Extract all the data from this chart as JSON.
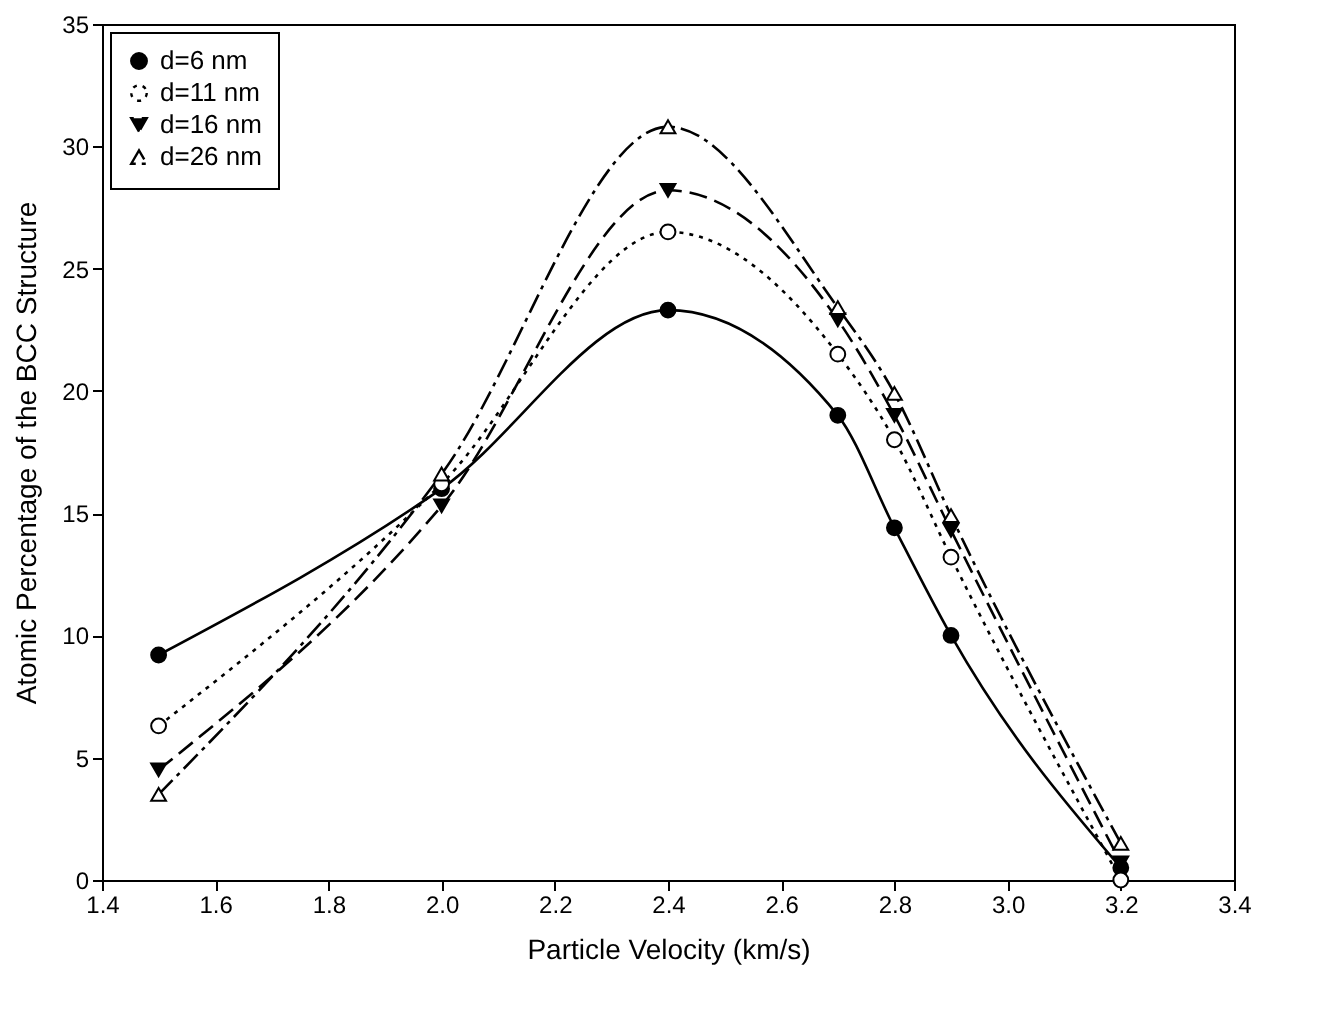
{
  "chart_data": {
    "type": "line",
    "xlabel": "Particle Velocity (km/s)",
    "ylabel": "Atomic Percentage of the BCC Structure",
    "x": [
      1.5,
      2.0,
      2.4,
      2.7,
      2.8,
      2.9,
      3.2
    ],
    "series": [
      {
        "name": "d=6 nm",
        "color": "#000000",
        "marker": "circle",
        "line_style": "solid",
        "values": [
          9.2,
          16.0,
          23.3,
          19.0,
          14.4,
          10.0,
          0.5
        ]
      },
      {
        "name": "d=11 nm",
        "color": "#000000",
        "marker": "circle-open",
        "line_style": "dotted",
        "values": [
          6.3,
          16.2,
          26.5,
          21.5,
          18.0,
          13.2,
          0
        ]
      },
      {
        "name": "d=16 nm",
        "color": "#000000",
        "marker": "triangle-down",
        "line_style": "dashed",
        "values": [
          4.5,
          15.3,
          28.2,
          22.9,
          19.0,
          14.3,
          0.7
        ]
      },
      {
        "name": "d=26 nm",
        "color": "#000000",
        "marker": "triangle-open",
        "line_style": "dashdot",
        "values": [
          3.5,
          16.6,
          30.8,
          23.4,
          19.9,
          14.9,
          1.5
        ]
      }
    ],
    "xlim": [
      1.4,
      3.4
    ],
    "xticks": [
      1.4,
      1.6,
      1.8,
      {
        "value": 2,
        "label": "2.0"
      },
      2.2,
      2.4,
      2.6,
      2.8,
      {
        "value": 3,
        "label": "3.0"
      },
      3.2,
      3.4
    ],
    "ylim": [
      0,
      35
    ],
    "yticks": [
      0,
      5,
      10,
      15,
      20,
      25,
      30,
      35
    ],
    "grid": false,
    "legend": "top left"
  }
}
